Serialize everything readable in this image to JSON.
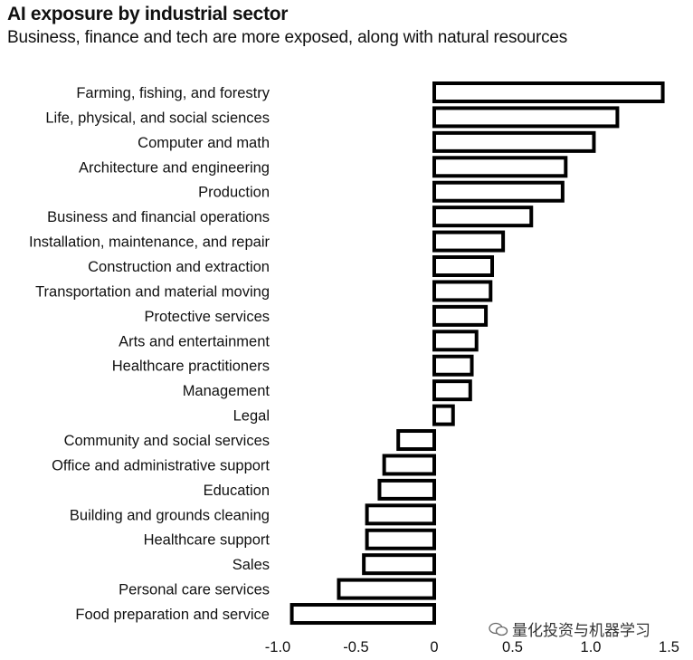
{
  "header": {
    "title": "AI exposure by industrial sector",
    "subtitle": "Business, finance and tech are more exposed, along with natural resources"
  },
  "watermark": {
    "text": "量化投资与机器学习"
  },
  "chart_data": {
    "type": "bar",
    "orientation": "horizontal",
    "title": "AI exposure by industrial sector",
    "subtitle": "Business, finance and tech are more exposed, along with natural resources",
    "xlabel": "",
    "ylabel": "",
    "xlim": [
      -1.0,
      1.5
    ],
    "x_ticks": [
      -1.0,
      -0.5,
      0,
      0.5,
      1.0,
      1.5
    ],
    "x_tick_labels": [
      "-1.0",
      "-0.5",
      "0",
      "0.5",
      "1.0",
      "1.5"
    ],
    "grid": false,
    "categories": [
      "Farming, fishing, and forestry",
      "Life, physical, and social sciences",
      "Computer and math",
      "Architecture and engineering",
      "Production",
      "Business and financial operations",
      "Installation, maintenance, and repair",
      "Construction and extraction",
      "Transportation and material moving",
      "Protective services",
      "Arts and entertainment",
      "Healthcare practitioners",
      "Management",
      "Legal",
      "Community and social services",
      "Office and administrative support",
      "Education",
      "Building and grounds cleaning",
      "Healthcare support",
      "Sales",
      "Personal care services",
      "Food preparation and service"
    ],
    "values": [
      1.46,
      1.17,
      1.02,
      0.84,
      0.82,
      0.62,
      0.44,
      0.37,
      0.36,
      0.33,
      0.27,
      0.24,
      0.23,
      0.12,
      -0.23,
      -0.32,
      -0.35,
      -0.43,
      -0.43,
      -0.45,
      -0.61,
      -0.91
    ],
    "bar_fill": "#ffffff",
    "bar_stroke": "#000000"
  }
}
